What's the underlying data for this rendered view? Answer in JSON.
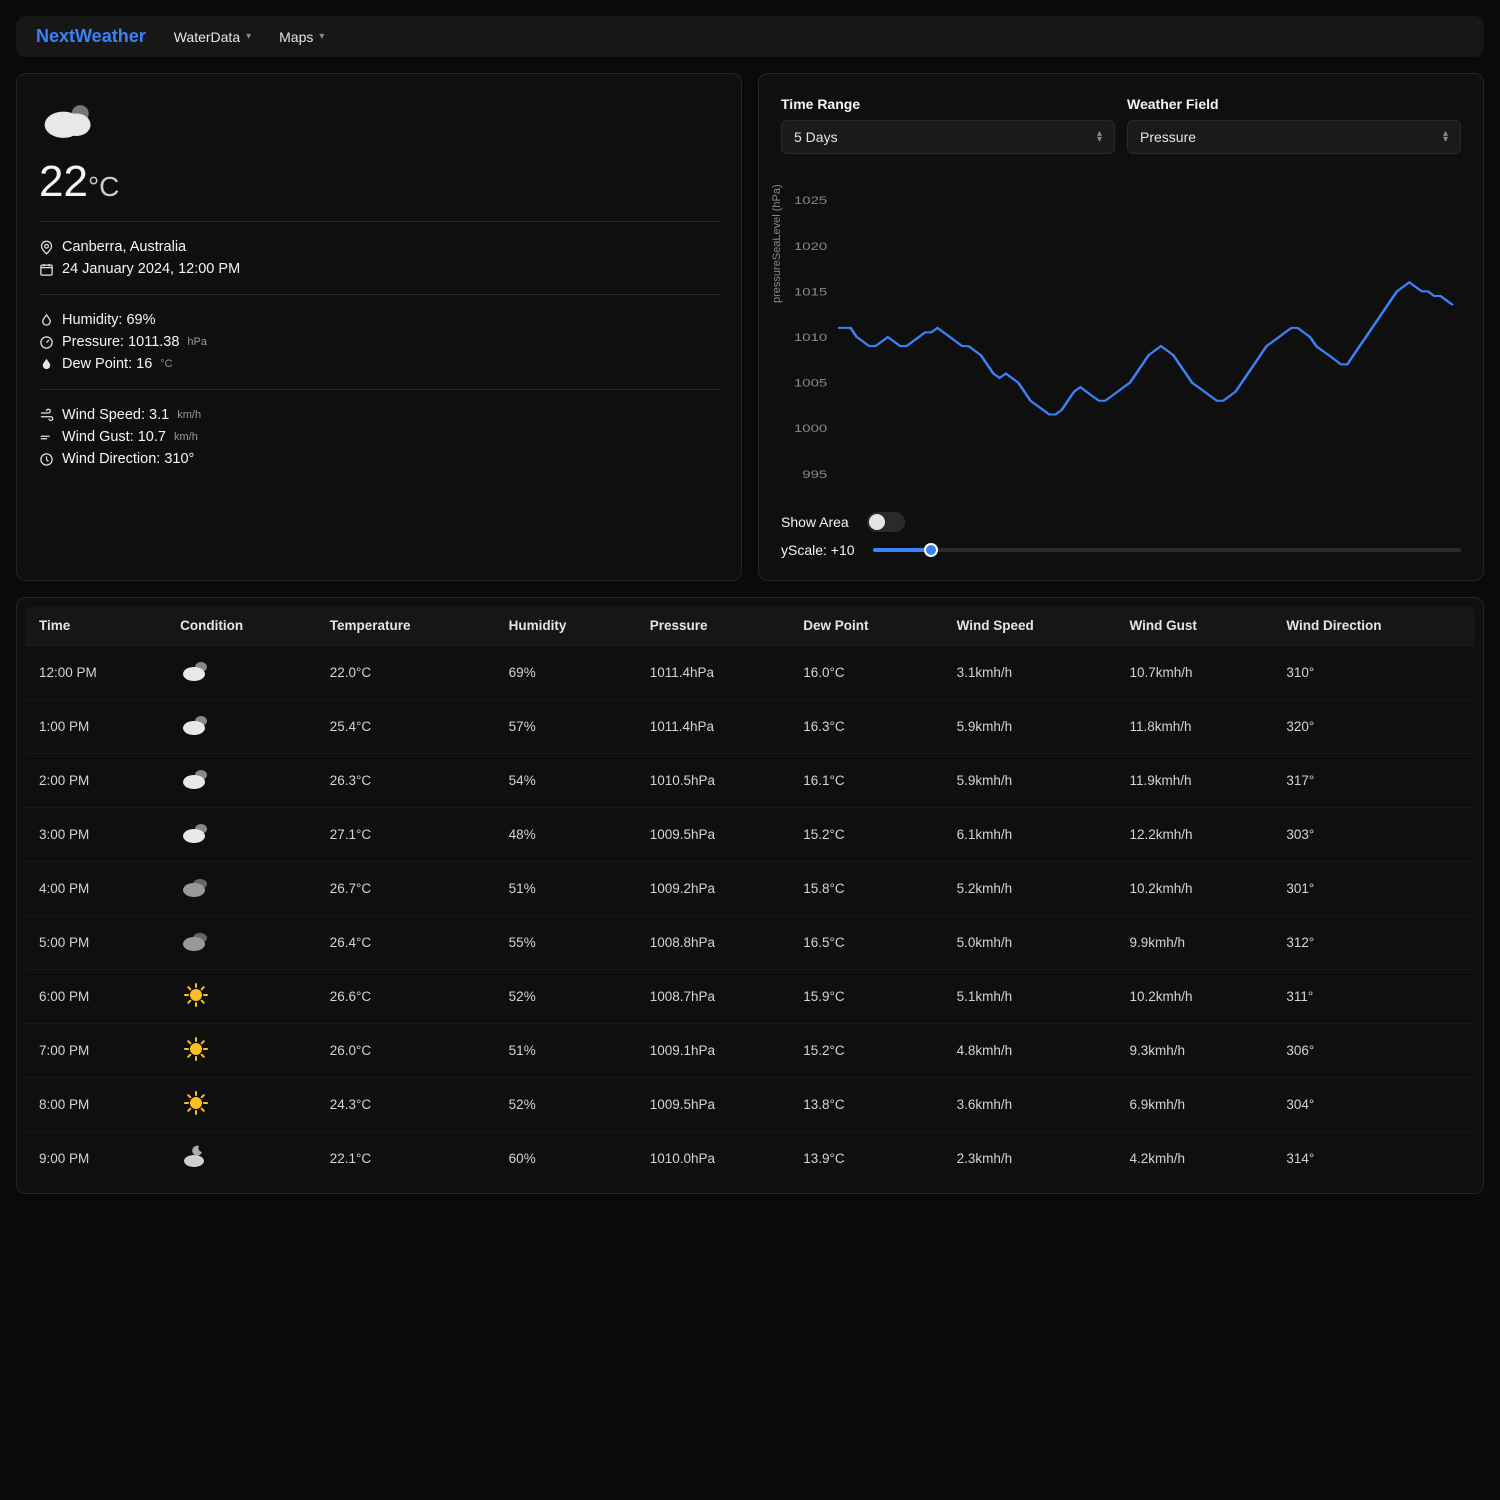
{
  "nav": {
    "brand": "NextWeather",
    "items": [
      "WaterData",
      "Maps"
    ]
  },
  "current": {
    "temp_value": "22",
    "temp_unit": "°C",
    "location": "Canberra, Australia",
    "datetime": "24 January 2024, 12:00 PM",
    "humidity_label": "Humidity: 69%",
    "pressure_label": "Pressure: 1011.38",
    "pressure_unit": "hPa",
    "dewpoint_label": "Dew Point: 16",
    "dewpoint_unit": "°C",
    "windspeed_label": "Wind Speed: 3.1",
    "windspeed_unit": "km/h",
    "windgust_label": "Wind Gust: 10.7",
    "windgust_unit": "km/h",
    "winddir_label": "Wind Direction: 310°"
  },
  "chart": {
    "time_range_label": "Time Range",
    "time_range_value": "5 Days",
    "field_label": "Weather Field",
    "field_value": "Pressure",
    "y_label": "pressureSeaLevel (hPa)",
    "type": "line",
    "line_color": "#3b82f6",
    "background_color": "#0f0f0f",
    "tick_color": "#888888",
    "ylim": [
      993,
      1027
    ],
    "yticks": [
      995,
      1000,
      1005,
      1010,
      1015,
      1020,
      1025
    ],
    "series": [
      1011,
      1011,
      1011,
      1010,
      1009.5,
      1009,
      1009,
      1009.5,
      1010,
      1009.5,
      1009,
      1009,
      1009.5,
      1010,
      1010.5,
      1010.5,
      1011,
      1010.5,
      1010,
      1009.5,
      1009,
      1009,
      1008.5,
      1008,
      1007,
      1006,
      1005.5,
      1006,
      1005.5,
      1005,
      1004,
      1003,
      1002.5,
      1002,
      1001.5,
      1001.5,
      1002,
      1003,
      1004,
      1004.5,
      1004,
      1003.5,
      1003,
      1003,
      1003.5,
      1004,
      1004.5,
      1005,
      1006,
      1007,
      1008,
      1008.5,
      1009,
      1008.5,
      1008,
      1007,
      1006,
      1005,
      1004.5,
      1004,
      1003.5,
      1003,
      1003,
      1003.5,
      1004,
      1005,
      1006,
      1007,
      1008,
      1009,
      1009.5,
      1010,
      1010.5,
      1011,
      1011,
      1010.5,
      1010,
      1009,
      1008.5,
      1008,
      1007.5,
      1007,
      1007,
      1008,
      1009,
      1010,
      1011,
      1012,
      1013,
      1014,
      1015,
      1015.5,
      1016,
      1015.5,
      1015,
      1015,
      1014.5,
      1014.5,
      1014,
      1013.5
    ],
    "show_area_label": "Show Area",
    "show_area_on": false,
    "yscale_label": "yScale: +10",
    "yscale_pct": 10
  },
  "table": {
    "columns": [
      "Time",
      "Condition",
      "Temperature",
      "Humidity",
      "Pressure",
      "Dew Point",
      "Wind Speed",
      "Wind Gust",
      "Wind Direction"
    ],
    "rows": [
      {
        "time": "12:00 PM",
        "cond": "cloudy",
        "temp": "22.0°C",
        "hum": "69%",
        "pres": "1011.4hPa",
        "dew": "16.0°C",
        "ws": "3.1kmh/h",
        "wg": "10.7kmh/h",
        "wd": "310°"
      },
      {
        "time": "1:00 PM",
        "cond": "cloudy",
        "temp": "25.4°C",
        "hum": "57%",
        "pres": "1011.4hPa",
        "dew": "16.3°C",
        "ws": "5.9kmh/h",
        "wg": "11.8kmh/h",
        "wd": "320°"
      },
      {
        "time": "2:00 PM",
        "cond": "cloudy",
        "temp": "26.3°C",
        "hum": "54%",
        "pres": "1010.5hPa",
        "dew": "16.1°C",
        "ws": "5.9kmh/h",
        "wg": "11.9kmh/h",
        "wd": "317°"
      },
      {
        "time": "3:00 PM",
        "cond": "cloudy",
        "temp": "27.1°C",
        "hum": "48%",
        "pres": "1009.5hPa",
        "dew": "15.2°C",
        "ws": "6.1kmh/h",
        "wg": "12.2kmh/h",
        "wd": "303°"
      },
      {
        "time": "4:00 PM",
        "cond": "cloudy-dark",
        "temp": "26.7°C",
        "hum": "51%",
        "pres": "1009.2hPa",
        "dew": "15.8°C",
        "ws": "5.2kmh/h",
        "wg": "10.2kmh/h",
        "wd": "301°"
      },
      {
        "time": "5:00 PM",
        "cond": "cloudy-dark",
        "temp": "26.4°C",
        "hum": "55%",
        "pres": "1008.8hPa",
        "dew": "16.5°C",
        "ws": "5.0kmh/h",
        "wg": "9.9kmh/h",
        "wd": "312°"
      },
      {
        "time": "6:00 PM",
        "cond": "sunny",
        "temp": "26.6°C",
        "hum": "52%",
        "pres": "1008.7hPa",
        "dew": "15.9°C",
        "ws": "5.1kmh/h",
        "wg": "10.2kmh/h",
        "wd": "311°"
      },
      {
        "time": "7:00 PM",
        "cond": "sunny",
        "temp": "26.0°C",
        "hum": "51%",
        "pres": "1009.1hPa",
        "dew": "15.2°C",
        "ws": "4.8kmh/h",
        "wg": "9.3kmh/h",
        "wd": "306°"
      },
      {
        "time": "8:00 PM",
        "cond": "sunny",
        "temp": "24.3°C",
        "hum": "52%",
        "pres": "1009.5hPa",
        "dew": "13.8°C",
        "ws": "3.6kmh/h",
        "wg": "6.9kmh/h",
        "wd": "304°"
      },
      {
        "time": "9:00 PM",
        "cond": "night-cloudy",
        "temp": "22.1°C",
        "hum": "60%",
        "pres": "1010.0hPa",
        "dew": "13.9°C",
        "ws": "2.3kmh/h",
        "wg": "4.2kmh/h",
        "wd": "314°"
      }
    ]
  }
}
